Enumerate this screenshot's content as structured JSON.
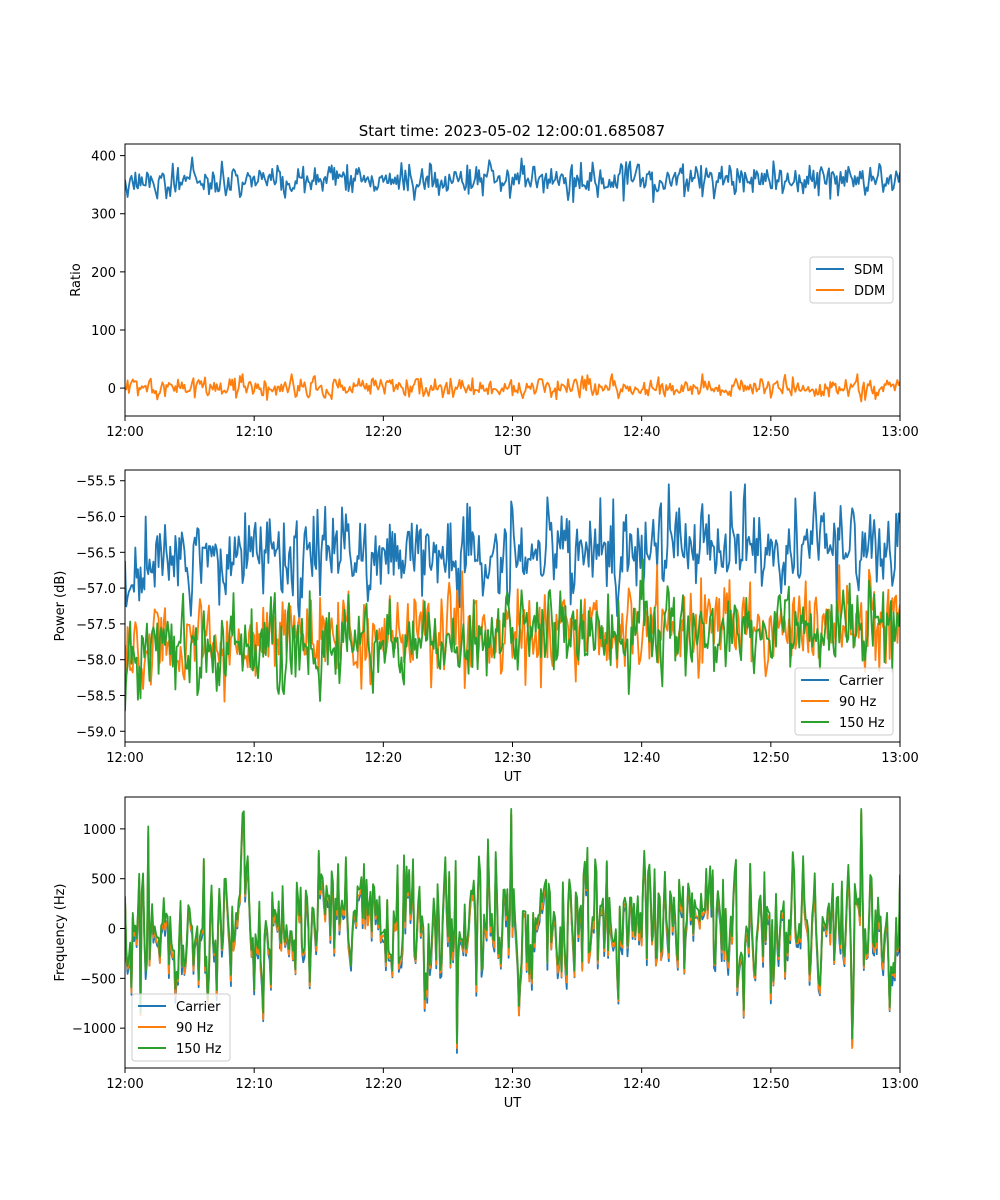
{
  "figure_title": "Start time: 2023-05-02 12:00:01.685087",
  "chart_data": [
    {
      "type": "line",
      "title": "Start time: 2023-05-02 12:00:01.685087",
      "xlabel": "UT",
      "ylabel": "Ratio",
      "x_range": [
        "12:00",
        "13:00"
      ],
      "x_ticks": [
        "12:00",
        "12:10",
        "12:20",
        "12:30",
        "12:40",
        "12:50",
        "13:00"
      ],
      "ylim": [
        -48,
        420
      ],
      "y_ticks": [
        0,
        100,
        200,
        300,
        400
      ],
      "y_tick_labels": [
        "0",
        "100",
        "200",
        "300",
        "400"
      ],
      "legend_position": "center-right",
      "grid": false,
      "series": [
        {
          "name": "SDM",
          "color": "#1f77b4",
          "mean": 357,
          "spread": 14,
          "extremes": [
            320,
            397
          ]
        },
        {
          "name": "DDM",
          "color": "#ff7f0e",
          "mean": 0,
          "spread": 9,
          "extremes": [
            -26,
            24
          ]
        }
      ]
    },
    {
      "type": "line",
      "title": "",
      "xlabel": "UT",
      "ylabel": "Power (dB)",
      "x_range": [
        "12:00",
        "13:00"
      ],
      "x_ticks": [
        "12:00",
        "12:10",
        "12:20",
        "12:30",
        "12:40",
        "12:50",
        "13:00"
      ],
      "ylim": [
        -59.15,
        -55.35
      ],
      "y_ticks": [
        -59.0,
        -58.5,
        -58.0,
        -57.5,
        -57.0,
        -56.5,
        -56.0,
        -55.5
      ],
      "y_tick_labels": [
        "−59.0",
        "−58.5",
        "−58.0",
        "−57.5",
        "−57.0",
        "−56.5",
        "−56.0",
        "−55.5"
      ],
      "legend_position": "lower-right",
      "grid": false,
      "series": [
        {
          "name": "Carrier",
          "color": "#1f77b4",
          "mean": -56.55,
          "spread": 0.3,
          "extremes": [
            -57.6,
            -55.55
          ]
        },
        {
          "name": "90 Hz",
          "color": "#ff7f0e",
          "mean": -57.65,
          "spread": 0.3,
          "extremes": [
            -58.8,
            -56.5
          ]
        },
        {
          "name": "150 Hz",
          "color": "#2ca02c",
          "mean": -57.7,
          "spread": 0.3,
          "extremes": [
            -59.0,
            -56.6
          ]
        }
      ]
    },
    {
      "type": "line",
      "title": "",
      "xlabel": "UT",
      "ylabel": "Frequency (Hz)",
      "x_range": [
        "12:00",
        "13:00"
      ],
      "x_ticks": [
        "12:00",
        "12:10",
        "12:20",
        "12:30",
        "12:40",
        "12:50",
        "13:00"
      ],
      "ylim": [
        -1400,
        1320
      ],
      "y_ticks": [
        -1000,
        -500,
        0,
        500,
        1000
      ],
      "y_tick_labels": [
        "−1000",
        "−500",
        "0",
        "500",
        "1000"
      ],
      "legend_position": "lower-left",
      "grid": false,
      "series": [
        {
          "name": "Carrier",
          "color": "#1f77b4",
          "mean": -20,
          "spread": 350,
          "extremes": [
            -1270,
            1150
          ]
        },
        {
          "name": "90 Hz",
          "color": "#ff7f0e",
          "mean": 10,
          "spread": 350,
          "extremes": [
            -1200,
            1180
          ]
        },
        {
          "name": "150 Hz",
          "color": "#2ca02c",
          "mean": 60,
          "spread": 350,
          "extremes": [
            -1150,
            1200
          ]
        }
      ]
    }
  ]
}
